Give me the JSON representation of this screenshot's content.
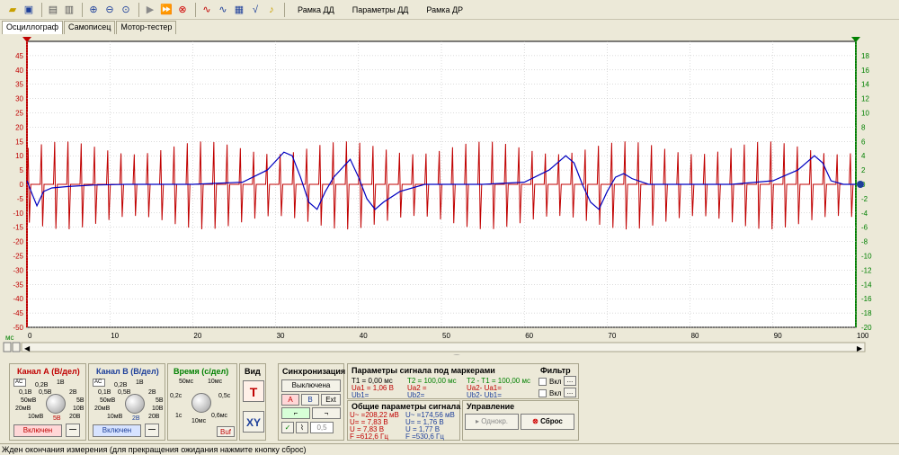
{
  "toolbar": {
    "icons": [
      "open-folder-icon",
      "save-icon",
      "print-preview-icon",
      "print-icon",
      "zoom-in-icon",
      "zoom-out-icon",
      "zoom-icon",
      "play-icon",
      "step-icon",
      "stop-icon",
      "signal-a-icon",
      "signal-b-icon",
      "calculator-icon",
      "sqrt-icon",
      "audio-icon"
    ],
    "menu": [
      "Рамка ДД",
      "Параметры ДД",
      "Рамка ДР"
    ]
  },
  "tabs": [
    "Осциллограф",
    "Самописец",
    "Мотор-тестер"
  ],
  "plot": {
    "unit_label": "мс",
    "colors": {
      "channel_a": "#c00000",
      "channel_b": "#0000c0",
      "grid": "#b8b8b8",
      "left_axis": "#c00000",
      "right_axis": "#008000"
    }
  },
  "chart_data": {
    "type": "line",
    "x": {
      "range": [
        0,
        100
      ],
      "ticks": [
        "0",
        "10",
        "20",
        "30",
        "40",
        "50",
        "60",
        "70",
        "80",
        "90",
        "100"
      ],
      "label": "мс"
    },
    "y_left": {
      "range": [
        -50,
        50
      ],
      "ticks": [
        "45",
        "40",
        "35",
        "30",
        "25",
        "20",
        "15",
        "10",
        "5",
        "0",
        "-5",
        "-10",
        "-15",
        "-20",
        "-25",
        "-30",
        "-35",
        "-40",
        "-45",
        "-50"
      ]
    },
    "y_right": {
      "range": [
        -20,
        20
      ],
      "ticks": [
        "18",
        "16",
        "14",
        "12",
        "10",
        "8",
        "6",
        "4",
        "2",
        "0",
        "-2",
        "-4",
        "-6",
        "-8",
        "-10",
        "-12",
        "-14",
        "-16",
        "-18",
        "-20"
      ]
    },
    "grid": true,
    "series": [
      {
        "channel": "A",
        "axis": "left",
        "color": "#c00000",
        "pulse_period_ms": 1.6,
        "amplitude": 15
      },
      {
        "channel": "B",
        "axis": "right",
        "color": "#0000c0",
        "points": [
          [
            0,
            0.5
          ],
          [
            0.5,
            -1
          ],
          [
            1.2,
            -3
          ],
          [
            2,
            -1
          ],
          [
            3,
            -0.5
          ],
          [
            5,
            -0.3
          ],
          [
            8,
            -0.1
          ],
          [
            12,
            0
          ],
          [
            20,
            0
          ],
          [
            26,
            0.3
          ],
          [
            29,
            2
          ],
          [
            31,
            4.5
          ],
          [
            32,
            4
          ],
          [
            33,
            1
          ],
          [
            34,
            -2.5
          ],
          [
            35,
            -3.5
          ],
          [
            36,
            -1
          ],
          [
            37,
            1
          ],
          [
            39,
            3.5
          ],
          [
            40,
            1
          ],
          [
            41,
            -2
          ],
          [
            42,
            -3.5
          ],
          [
            43,
            -2.5
          ],
          [
            45,
            -1
          ],
          [
            48,
            0
          ],
          [
            55,
            0
          ],
          [
            60,
            0.3
          ],
          [
            63,
            2
          ],
          [
            65,
            4
          ],
          [
            66,
            3
          ],
          [
            67,
            0
          ],
          [
            68,
            -2.5
          ],
          [
            69,
            -3.5
          ],
          [
            70,
            -1
          ],
          [
            71,
            1
          ],
          [
            72,
            1.5
          ],
          [
            73,
            0.8
          ],
          [
            75,
            0
          ],
          [
            85,
            0
          ],
          [
            90,
            0.5
          ],
          [
            93,
            2
          ],
          [
            95,
            4
          ],
          [
            96,
            3
          ],
          [
            97,
            0.5
          ],
          [
            98.5,
            0
          ],
          [
            100,
            0
          ]
        ]
      }
    ]
  },
  "panels": {
    "channel_a": {
      "title": "Канал А (В/дел)",
      "scale_labels": [
        "0,2В",
        "0,5В",
        "1В",
        "2В",
        "5В",
        "10В",
        "20В",
        "50мВ",
        "20мВ",
        "10мВ",
        "0,1В"
      ],
      "value": "5В",
      "button": "Включен",
      "minus": "—",
      "ac": "AC"
    },
    "channel_b": {
      "title": "Канал В (В/дел)",
      "scale_labels": [
        "0,2В",
        "0,5В",
        "1В",
        "2В",
        "5В",
        "10В",
        "20В",
        "50мВ",
        "20мВ",
        "10мВ",
        "0,1В"
      ],
      "value": "2В",
      "button": "Включен",
      "minus": "—",
      "ac": "AC"
    },
    "time": {
      "title": "Время (с/дел)",
      "scale_labels": [
        "50мс",
        "10мс",
        "0,2с",
        "0,5с",
        "1с",
        "10мс",
        "0,6мс"
      ],
      "buf": "Buf"
    },
    "view": {
      "title": "Вид",
      "t": "T",
      "xy": "XY"
    },
    "sync": {
      "title": "Синхронизация",
      "mode": "Выключена",
      "a": "A",
      "b": "B",
      "ext": "Ext",
      "level": "0,5"
    },
    "markers": {
      "title": "Параметры сигнала под маркерами",
      "t1": "T1 = 0,00 мс",
      "ua1": "Ua1 = 1,06 В",
      "ub1": "Ub1=",
      "t2": "T2 = 100,00 мс",
      "ua2": "Ua2 =",
      "ub2": "Ub2=",
      "dt": "T2 - T1 = 100,00 мс",
      "dua": "Ua2- Ua1=",
      "dub": "Ub2- Ub1="
    },
    "filter": {
      "title": "Фильтр",
      "on1": "Вкл",
      "on2": "Вкл",
      "dots": "..."
    },
    "general": {
      "title": "Общие параметры сигнала",
      "a_u_tilde": "U~ =208,22 мВ",
      "a_u_eq": "U= = 7,83 В",
      "a_u": "U = 7,83 В",
      "a_f": "F =612,6 Гц",
      "b_u_tilde": "U~ =174,56 мВ",
      "b_u_eq": "U= = 1,76 В",
      "b_u": "U = 1,77 В",
      "b_f": "F =530,6 Гц"
    },
    "control": {
      "title": "Управление",
      "single": "Однокр.",
      "reset": "Сброс"
    }
  },
  "status": "Жден окончания измерения (для прекращения ожидания нажмите кнопку сброс)"
}
